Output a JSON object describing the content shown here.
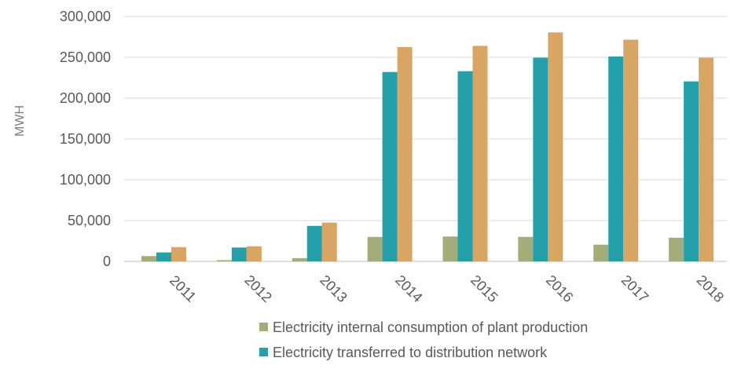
{
  "chart_data": {
    "type": "bar",
    "title": "",
    "ylabel": "MWH",
    "xlabel": "",
    "ylim": [
      0,
      300000
    ],
    "yticks": [
      0,
      50000,
      100000,
      150000,
      200000,
      250000,
      300000
    ],
    "ytick_labels": [
      "0",
      "50,000",
      "100,000",
      "150,000",
      "200,000",
      "250,000",
      "300,000"
    ],
    "categories": [
      "2011",
      "2012",
      "2013",
      "2014",
      "2015",
      "2016",
      "2017",
      "2018"
    ],
    "grid": true,
    "legend_position": "bottom",
    "series": [
      {
        "name": " Electricity internal consumption of plant production",
        "color": "#a2ad7a",
        "values": [
          6500,
          1500,
          4000,
          30000,
          30500,
          30000,
          20500,
          29000
        ]
      },
      {
        "name": "Electricity transferred to distribution network",
        "color": "#24a0aa",
        "values": [
          11000,
          17000,
          43500,
          232000,
          233000,
          249500,
          251000,
          220500
        ]
      },
      {
        "name": "",
        "color": "#d9a563",
        "values": [
          17500,
          18500,
          47500,
          262500,
          264000,
          280500,
          271500,
          249500
        ]
      }
    ]
  }
}
